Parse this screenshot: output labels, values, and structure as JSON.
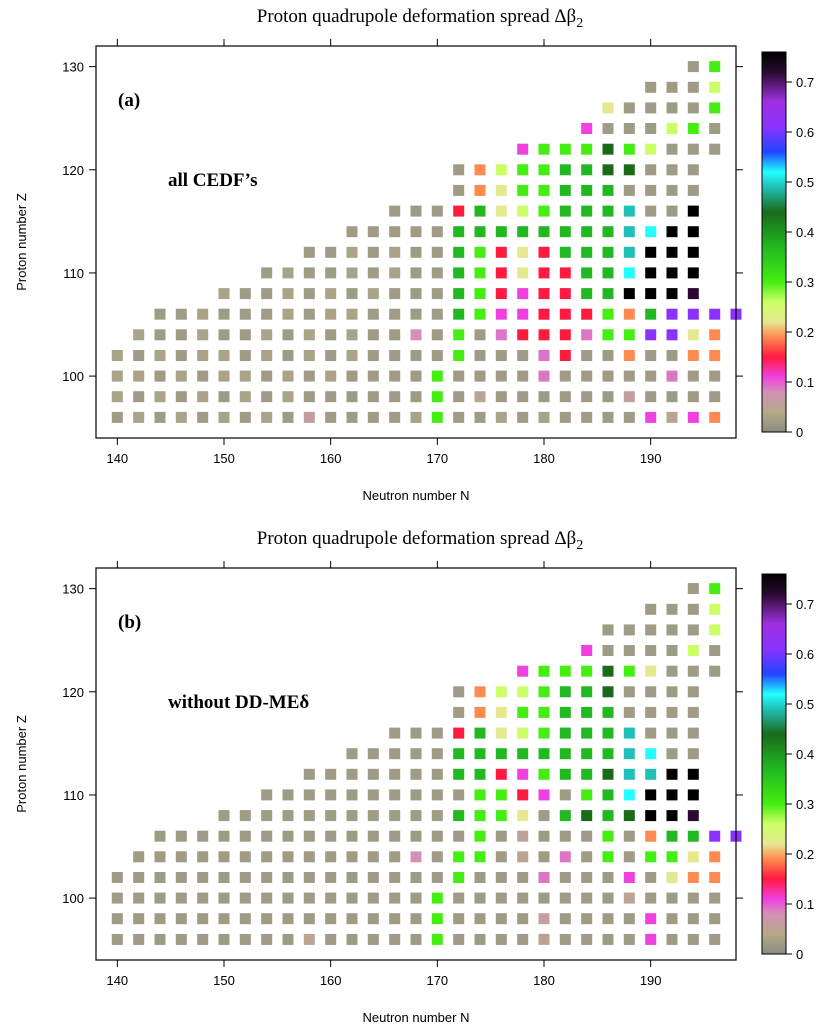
{
  "colorscale": {
    "stops": [
      [
        0.0,
        "#8c8c82"
      ],
      [
        0.04,
        "#b4aa88"
      ],
      [
        0.08,
        "#d490b8"
      ],
      [
        0.11,
        "#f040e0"
      ],
      [
        0.15,
        "#ff1a40"
      ],
      [
        0.19,
        "#ff8a50"
      ],
      [
        0.22,
        "#e6e890"
      ],
      [
        0.26,
        "#ccff66"
      ],
      [
        0.3,
        "#44ee11"
      ],
      [
        0.37,
        "#22b822"
      ],
      [
        0.44,
        "#1a6a1a"
      ],
      [
        0.49,
        "#20c0b8"
      ],
      [
        0.52,
        "#22ffff"
      ],
      [
        0.56,
        "#2244ff"
      ],
      [
        0.61,
        "#8a33ff"
      ],
      [
        0.66,
        "#a030e0"
      ],
      [
        0.72,
        "#2a0a30"
      ],
      [
        0.76,
        "#000000"
      ]
    ]
  },
  "chart_data": [
    {
      "type": "heatmap",
      "title": "Proton quadrupole deformation spread Δβ",
      "title_subscript": "2",
      "panel_tag": "(a)",
      "annotation": "all CEDF’s",
      "xlabel": "Neutron number  N",
      "ylabel": "Proton number  Z",
      "xlim": [
        138,
        198
      ],
      "ylim": [
        94,
        132
      ],
      "x_ticks": [
        "140",
        "150",
        "160",
        "170",
        "180",
        "190"
      ],
      "y_ticks": [
        "100",
        "110",
        "120",
        "130"
      ],
      "colorbar_range": [
        0,
        0.76
      ],
      "colorbar_ticks": [
        "0",
        "0.1",
        "0.2",
        "0.3",
        "0.4",
        "0.5",
        "0.6",
        "0.7"
      ],
      "rows": [
        {
          "z": 96,
          "n0": 140,
          "v": [
            0.02,
            0.03,
            0.02,
            0.03,
            0.02,
            0.03,
            0.02,
            0.03,
            0.02,
            0.06,
            0.02,
            0.02,
            0.02,
            0.02,
            0.03,
            0.3,
            0.02,
            0.02,
            0.03,
            0.02,
            0.03,
            0.02,
            0.02,
            0.02,
            0.02,
            0.11,
            0.05,
            0.11,
            0.19
          ]
        },
        {
          "z": 98,
          "n0": 140,
          "v": [
            0.03,
            0.02,
            0.03,
            0.02,
            0.03,
            0.02,
            0.03,
            0.02,
            0.03,
            0.02,
            0.02,
            0.02,
            0.02,
            0.02,
            0.02,
            0.3,
            0.02,
            0.05,
            0.02,
            0.02,
            0.02,
            0.02,
            0.02,
            0.02,
            0.06,
            0.02,
            0.02,
            0.02,
            0.02
          ]
        },
        {
          "z": 100,
          "n0": 140,
          "v": [
            0.03,
            0.03,
            0.02,
            0.03,
            0.02,
            0.03,
            0.03,
            0.02,
            0.03,
            0.02,
            0.03,
            0.02,
            0.02,
            0.02,
            0.02,
            0.3,
            0.02,
            0.02,
            0.02,
            0.02,
            0.09,
            0.02,
            0.02,
            0.02,
            0.02,
            0.02,
            0.09,
            0.02,
            0.02
          ]
        },
        {
          "z": 102,
          "n0": 140,
          "v": [
            0.03,
            0.02,
            0.03,
            0.02,
            0.03,
            0.03,
            0.02,
            0.03,
            0.02,
            0.03,
            0.02,
            0.03,
            0.02,
            0.02,
            0.02,
            0.02,
            0.3,
            0.02,
            0.02,
            0.02,
            0.09,
            0.15,
            0.02,
            0.02,
            0.19,
            0.02,
            0.02,
            0.19,
            0.19
          ]
        },
        {
          "z": 104,
          "n0": 142,
          "v": [
            0.03,
            0.02,
            0.02,
            0.03,
            0.02,
            0.02,
            0.03,
            0.02,
            0.03,
            0.02,
            0.03,
            0.02,
            0.02,
            0.08,
            0.02,
            0.3,
            0.02,
            0.09,
            0.15,
            0.15,
            0.15,
            0.09,
            0.3,
            0.3,
            0.61,
            0.61,
            0.22,
            0.19
          ]
        },
        {
          "z": 106,
          "n0": 144,
          "v": [
            0.02,
            0.02,
            0.03,
            0.02,
            0.02,
            0.02,
            0.03,
            0.02,
            0.03,
            0.03,
            0.02,
            0.02,
            0.02,
            0.02,
            0.37,
            0.3,
            0.11,
            0.11,
            0.15,
            0.15,
            0.15,
            0.3,
            0.19,
            0.37,
            0.61,
            0.61,
            0.61,
            0.61
          ]
        },
        {
          "z": 108,
          "n0": 150,
          "v": [
            0.03,
            0.02,
            0.02,
            0.03,
            0.02,
            0.03,
            0.02,
            0.03,
            0.02,
            0.02,
            0.02,
            0.37,
            0.3,
            0.15,
            0.11,
            0.15,
            0.15,
            0.37,
            0.37,
            0.76,
            0.76,
            0.76,
            0.72
          ]
        },
        {
          "z": 110,
          "n0": 154,
          "v": [
            0.02,
            0.03,
            0.02,
            0.02,
            0.03,
            0.02,
            0.03,
            0.02,
            0.02,
            0.37,
            0.3,
            0.15,
            0.22,
            0.15,
            0.15,
            0.37,
            0.37,
            0.52,
            0.76,
            0.76,
            0.76
          ]
        },
        {
          "z": 112,
          "n0": 158,
          "v": [
            0.02,
            0.02,
            0.03,
            0.02,
            0.03,
            0.02,
            0.02,
            0.37,
            0.3,
            0.15,
            0.22,
            0.15,
            0.37,
            0.37,
            0.37,
            0.49,
            0.76,
            0.76,
            0.76
          ]
        },
        {
          "z": 114,
          "n0": 162,
          "v": [
            0.02,
            0.02,
            0.02,
            0.02,
            0.02,
            0.37,
            0.37,
            0.37,
            0.37,
            0.37,
            0.37,
            0.37,
            0.37,
            0.49,
            0.52,
            0.76,
            0.76
          ]
        },
        {
          "z": 116,
          "n0": 166,
          "v": [
            0.02,
            0.02,
            0.02,
            0.15,
            0.37,
            0.22,
            0.26,
            0.3,
            0.37,
            0.37,
            0.37,
            0.49,
            0.02,
            0.02,
            0.76
          ]
        },
        {
          "z": 118,
          "n0": 172,
          "v": [
            0.02,
            0.19,
            0.22,
            0.3,
            0.3,
            0.37,
            0.37,
            0.37,
            0.02,
            0.02,
            0.02,
            0.02
          ]
        },
        {
          "z": 120,
          "n0": 172,
          "v": [
            0.02,
            0.19,
            0.26,
            0.3,
            0.3,
            0.37,
            0.37,
            0.44,
            0.44,
            0.02,
            0.02,
            0.02
          ]
        },
        {
          "z": 122,
          "n0": 178,
          "v": [
            0.11,
            0.3,
            0.3,
            0.3,
            0.44,
            0.3,
            0.26,
            0.02,
            0.02,
            0.02
          ]
        },
        {
          "z": 124,
          "n0": 184,
          "v": [
            0.11,
            0.02,
            0.02,
            0.02,
            0.26,
            0.3,
            0.02
          ]
        },
        {
          "z": 126,
          "n0": 186,
          "v": [
            0.22,
            0.02,
            0.02,
            0.02,
            0.02,
            0.3
          ]
        },
        {
          "z": 128,
          "n0": 190,
          "v": [
            0.02,
            0.02,
            0.02,
            0.26
          ]
        },
        {
          "z": 130,
          "n0": 194,
          "v": [
            0.02,
            0.3
          ]
        }
      ]
    },
    {
      "type": "heatmap",
      "title": "Proton quadrupole deformation spread Δβ",
      "title_subscript": "2",
      "panel_tag": "(b)",
      "annotation": "without DD-MEδ",
      "xlabel": "Neutron number  N",
      "ylabel": "Proton number  Z",
      "xlim": [
        138,
        198
      ],
      "ylim": [
        94,
        132
      ],
      "x_ticks": [
        "140",
        "150",
        "160",
        "170",
        "180",
        "190"
      ],
      "y_ticks": [
        "100",
        "110",
        "120",
        "130"
      ],
      "colorbar_range": [
        0,
        0.76
      ],
      "colorbar_ticks": [
        "0",
        "0.1",
        "0.2",
        "0.3",
        "0.4",
        "0.5",
        "0.6",
        "0.7"
      ],
      "rows": [
        {
          "z": 96,
          "n0": 140,
          "v": [
            0.02,
            0.02,
            0.02,
            0.02,
            0.02,
            0.02,
            0.02,
            0.02,
            0.02,
            0.05,
            0.02,
            0.02,
            0.02,
            0.02,
            0.02,
            0.3,
            0.02,
            0.02,
            0.02,
            0.02,
            0.05,
            0.02,
            0.02,
            0.02,
            0.02,
            0.11,
            0.02,
            0.02,
            0.02
          ]
        },
        {
          "z": 98,
          "n0": 140,
          "v": [
            0.02,
            0.02,
            0.02,
            0.02,
            0.02,
            0.02,
            0.02,
            0.02,
            0.02,
            0.02,
            0.02,
            0.02,
            0.02,
            0.02,
            0.02,
            0.3,
            0.02,
            0.02,
            0.02,
            0.02,
            0.06,
            0.02,
            0.02,
            0.02,
            0.02,
            0.11,
            0.02,
            0.02,
            0.02
          ]
        },
        {
          "z": 100,
          "n0": 140,
          "v": [
            0.02,
            0.02,
            0.02,
            0.02,
            0.02,
            0.02,
            0.02,
            0.02,
            0.02,
            0.02,
            0.02,
            0.02,
            0.02,
            0.02,
            0.02,
            0.3,
            0.02,
            0.02,
            0.02,
            0.02,
            0.02,
            0.02,
            0.02,
            0.02,
            0.05,
            0.02,
            0.02,
            0.02,
            0.02
          ]
        },
        {
          "z": 102,
          "n0": 140,
          "v": [
            0.02,
            0.02,
            0.02,
            0.02,
            0.02,
            0.02,
            0.02,
            0.02,
            0.02,
            0.02,
            0.02,
            0.02,
            0.02,
            0.02,
            0.02,
            0.02,
            0.3,
            0.02,
            0.02,
            0.02,
            0.09,
            0.02,
            0.02,
            0.02,
            0.11,
            0.02,
            0.22,
            0.19,
            0.19
          ]
        },
        {
          "z": 104,
          "n0": 142,
          "v": [
            0.02,
            0.02,
            0.02,
            0.02,
            0.02,
            0.02,
            0.02,
            0.02,
            0.02,
            0.02,
            0.02,
            0.02,
            0.02,
            0.08,
            0.02,
            0.3,
            0.3,
            0.02,
            0.05,
            0.02,
            0.09,
            0.02,
            0.3,
            0.02,
            0.3,
            0.3,
            0.22,
            0.19
          ]
        },
        {
          "z": 106,
          "n0": 144,
          "v": [
            0.02,
            0.02,
            0.02,
            0.02,
            0.02,
            0.02,
            0.02,
            0.02,
            0.02,
            0.02,
            0.02,
            0.02,
            0.02,
            0.02,
            0.02,
            0.3,
            0.02,
            0.05,
            0.02,
            0.02,
            0.02,
            0.3,
            0.02,
            0.19,
            0.37,
            0.37,
            0.61,
            0.61
          ]
        },
        {
          "z": 108,
          "n0": 150,
          "v": [
            0.02,
            0.02,
            0.02,
            0.02,
            0.02,
            0.02,
            0.02,
            0.02,
            0.02,
            0.02,
            0.02,
            0.37,
            0.3,
            0.3,
            0.22,
            0.02,
            0.37,
            0.44,
            0.37,
            0.44,
            0.76,
            0.76,
            0.72
          ]
        },
        {
          "z": 110,
          "n0": 154,
          "v": [
            0.02,
            0.02,
            0.02,
            0.02,
            0.02,
            0.02,
            0.02,
            0.02,
            0.02,
            0.02,
            0.3,
            0.3,
            0.15,
            0.11,
            0.02,
            0.3,
            0.37,
            0.52,
            0.76,
            0.76,
            0.76
          ]
        },
        {
          "z": 112,
          "n0": 158,
          "v": [
            0.02,
            0.02,
            0.02,
            0.02,
            0.02,
            0.02,
            0.02,
            0.37,
            0.37,
            0.15,
            0.11,
            0.3,
            0.37,
            0.37,
            0.44,
            0.49,
            0.49,
            0.76,
            0.76
          ]
        },
        {
          "z": 114,
          "n0": 162,
          "v": [
            0.02,
            0.02,
            0.02,
            0.02,
            0.02,
            0.37,
            0.37,
            0.37,
            0.37,
            0.37,
            0.37,
            0.37,
            0.37,
            0.49,
            0.52,
            0.02,
            0.02
          ]
        },
        {
          "z": 116,
          "n0": 166,
          "v": [
            0.02,
            0.02,
            0.02,
            0.15,
            0.37,
            0.22,
            0.26,
            0.3,
            0.37,
            0.37,
            0.37,
            0.49,
            0.02,
            0.02,
            0.02
          ]
        },
        {
          "z": 118,
          "n0": 172,
          "v": [
            0.02,
            0.19,
            0.22,
            0.3,
            0.3,
            0.37,
            0.37,
            0.37,
            0.02,
            0.02,
            0.02,
            0.02
          ]
        },
        {
          "z": 120,
          "n0": 172,
          "v": [
            0.02,
            0.19,
            0.26,
            0.26,
            0.3,
            0.37,
            0.37,
            0.44,
            0.02,
            0.02,
            0.02,
            0.02
          ]
        },
        {
          "z": 122,
          "n0": 178,
          "v": [
            0.11,
            0.3,
            0.3,
            0.3,
            0.44,
            0.3,
            0.22,
            0.02,
            0.02,
            0.02
          ]
        },
        {
          "z": 124,
          "n0": 184,
          "v": [
            0.11,
            0.02,
            0.02,
            0.02,
            0.02,
            0.26,
            0.02
          ]
        },
        {
          "z": 126,
          "n0": 186,
          "v": [
            0.02,
            0.02,
            0.02,
            0.02,
            0.02,
            0.26
          ]
        },
        {
          "z": 128,
          "n0": 190,
          "v": [
            0.02,
            0.02,
            0.02,
            0.26
          ]
        },
        {
          "z": 130,
          "n0": 194,
          "v": [
            0.02,
            0.3
          ]
        }
      ]
    }
  ]
}
